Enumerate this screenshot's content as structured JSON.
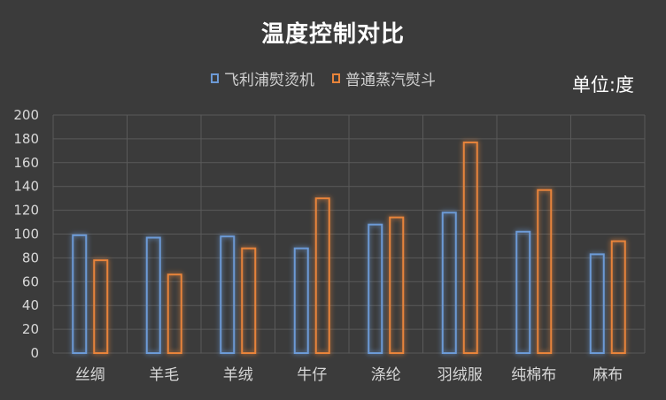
{
  "chart_data": {
    "type": "bar",
    "title": "温度控制对比",
    "unit_label": "单位:度",
    "categories": [
      "丝绸",
      "羊毛",
      "羊绒",
      "牛仔",
      "涤纶",
      "羽绒服",
      "纯棉布",
      "麻布"
    ],
    "series": [
      {
        "name": "飞利浦熨烫机",
        "values": [
          99,
          97,
          98,
          88,
          108,
          118,
          102,
          83
        ],
        "color": "#6c9ad6"
      },
      {
        "name": "普通蒸汽熨斗",
        "values": [
          78,
          66,
          88,
          130,
          114,
          177,
          137,
          94
        ],
        "color": "#e8843a"
      }
    ],
    "ylim": [
      0,
      200
    ],
    "yticks": [
      0,
      20,
      40,
      60,
      80,
      100,
      120,
      140,
      160,
      180,
      200
    ],
    "grid": true,
    "legend_position": "top"
  }
}
